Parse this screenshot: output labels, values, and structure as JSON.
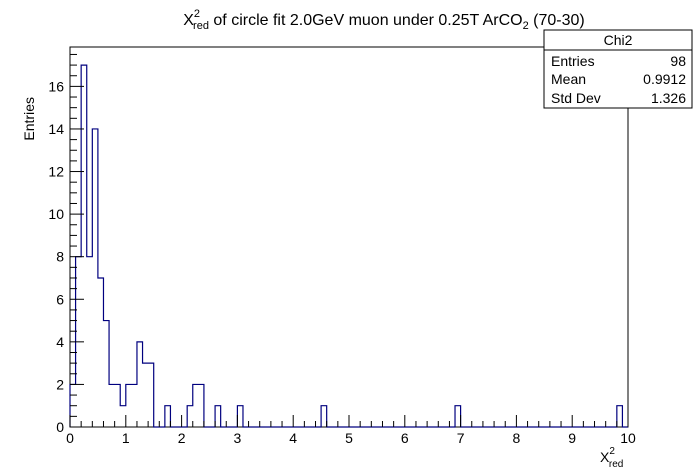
{
  "chart_data": {
    "type": "histogram",
    "title_prefix": "X",
    "title_sup": "2",
    "title_sub": "red",
    "title_suffix": " of circle fit 2.0GeV muon under 0.25T ArCO",
    "title_sub2": "2",
    "title_end": " (70-30)",
    "xlabel_main": "X",
    "xlabel_sup": "2",
    "xlabel_sub": "red",
    "ylabel": "Entries",
    "xlim": [
      0,
      10
    ],
    "ylim": [
      0,
      17.85
    ],
    "xticks": [
      "0",
      "1",
      "2",
      "3",
      "4",
      "5",
      "6",
      "7",
      "8",
      "9",
      "10"
    ],
    "yticks": [
      "0",
      "2",
      "4",
      "6",
      "8",
      "10",
      "12",
      "14",
      "16"
    ],
    "bin_width": 0.1,
    "bin_start": 0,
    "values": [
      2,
      8,
      17,
      8,
      14,
      7,
      5,
      2,
      2,
      1,
      2,
      2,
      4,
      3,
      3,
      0,
      0,
      1,
      0,
      0,
      0,
      1,
      2,
      2,
      0,
      0,
      1,
      0,
      0,
      0,
      1,
      0,
      0,
      0,
      0,
      0,
      0,
      0,
      0,
      0,
      0,
      0,
      0,
      0,
      0,
      1,
      0,
      0,
      0,
      0,
      0,
      0,
      0,
      0,
      0,
      0,
      0,
      0,
      0,
      0,
      0,
      0,
      0,
      0,
      0,
      0,
      0,
      0,
      0,
      1,
      0,
      0,
      0,
      0,
      0,
      0,
      0,
      0,
      0,
      0,
      0,
      0,
      0,
      0,
      0,
      0,
      0,
      0,
      0,
      0,
      0,
      0,
      0,
      0,
      0,
      0,
      0,
      0,
      1,
      0
    ],
    "line_color": "#00007f",
    "stats": {
      "title": "Chi2",
      "rows": [
        {
          "label": "Entries",
          "value": "98"
        },
        {
          "label": "Mean",
          "value": "0.9912"
        },
        {
          "label": "Std Dev",
          "value": "1.326"
        }
      ]
    }
  }
}
